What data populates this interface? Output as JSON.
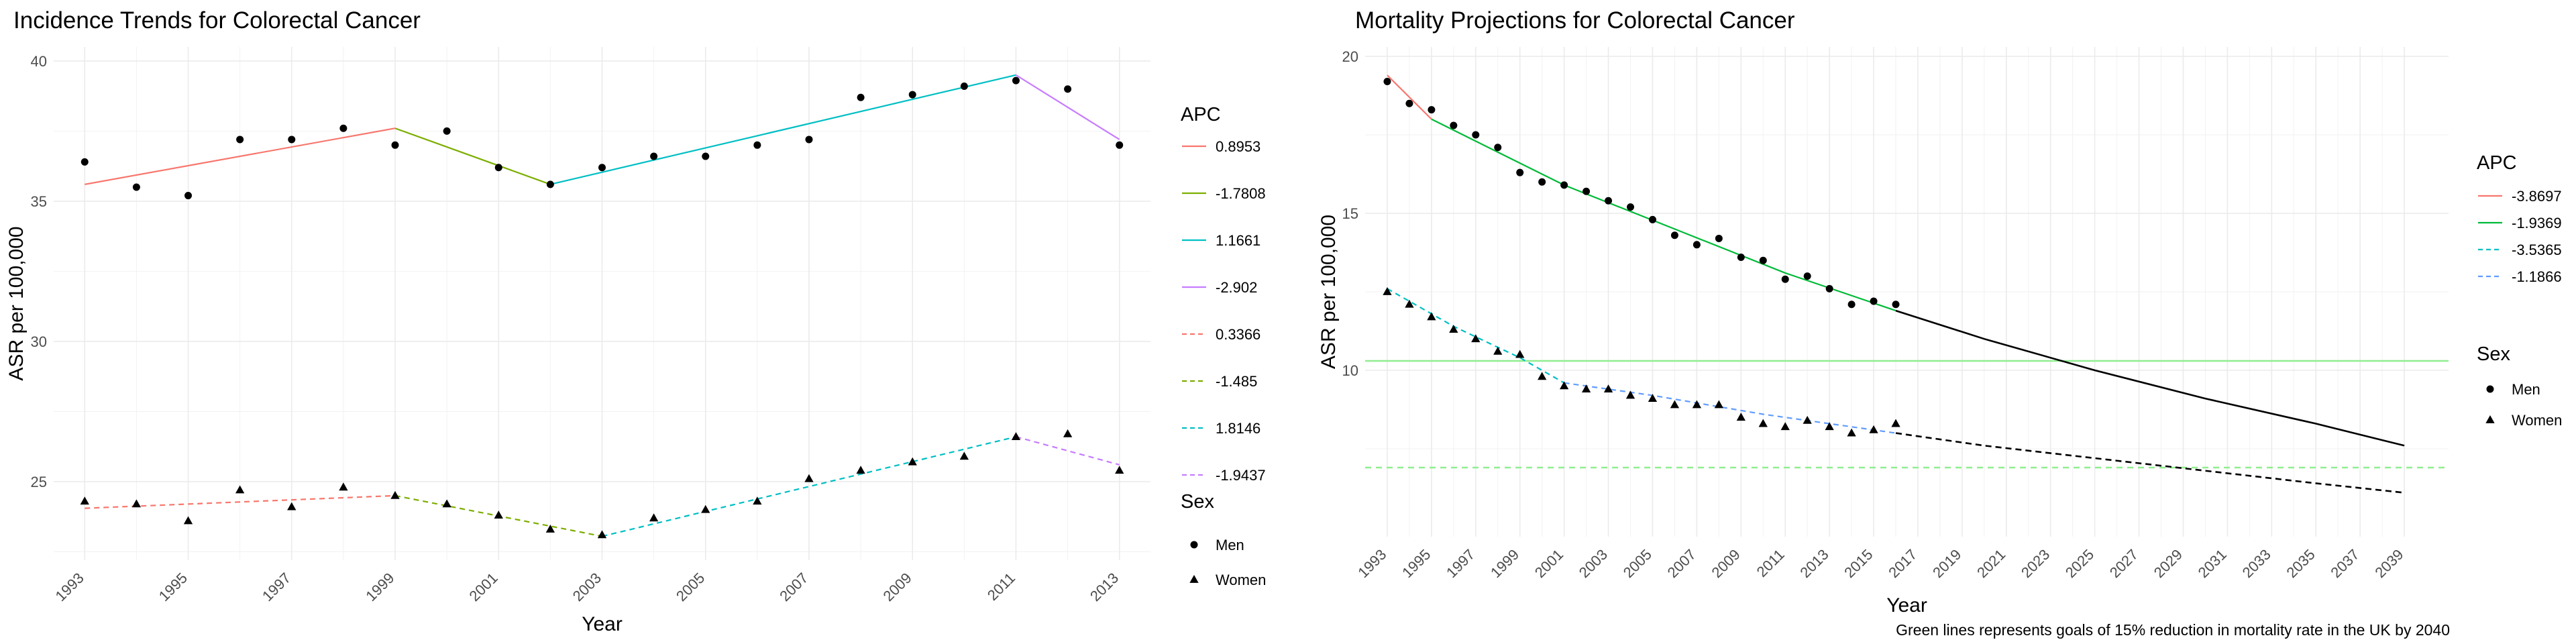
{
  "chart_data": [
    {
      "type": "scatter",
      "title": "Incidence Trends for Colorectal Cancer",
      "xlabel": "Year",
      "ylabel": "ASR per 100,000",
      "xlim": [
        1992.4,
        2013.6
      ],
      "ylim": [
        22.2,
        40.5
      ],
      "x_ticks": [
        "1993",
        "1995",
        "1997",
        "1999",
        "2001",
        "2003",
        "2005",
        "2007",
        "2009",
        "2011",
        "2013"
      ],
      "y_ticks": [
        "25",
        "30",
        "35",
        "40"
      ],
      "grid": true,
      "legend": {
        "placement": "right",
        "apc_title": "APC",
        "sex_title": "Sex",
        "apc_entries": [
          {
            "label": "0.8953",
            "color": "#F8766D",
            "dashed": false
          },
          {
            "label": "-1.7808",
            "color": "#7CAE00",
            "dashed": false
          },
          {
            "label": "1.1661",
            "color": "#00BFC4",
            "dashed": false
          },
          {
            "label": "-2.902",
            "color": "#C77CFF",
            "dashed": false
          },
          {
            "label": "0.3366",
            "color": "#F8766D",
            "dashed": true
          },
          {
            "label": "-1.485",
            "color": "#7CAE00",
            "dashed": true
          },
          {
            "label": "1.8146",
            "color": "#00BFC4",
            "dashed": true
          },
          {
            "label": "-1.9437",
            "color": "#C77CFF",
            "dashed": true
          }
        ],
        "sex_entries": [
          {
            "label": "Men",
            "shape": "circle"
          },
          {
            "label": "Women",
            "shape": "triangle"
          }
        ]
      },
      "series": [
        {
          "name": "Men",
          "shape": "circle",
          "x": [
            1993,
            1994,
            1995,
            1996,
            1997,
            1998,
            1999,
            2000,
            2001,
            2002,
            2003,
            2004,
            2005,
            2006,
            2007,
            2008,
            2009,
            2010,
            2011,
            2012,
            2013
          ],
          "y": [
            36.4,
            35.5,
            35.2,
            37.2,
            37.2,
            37.6,
            37.0,
            37.5,
            36.2,
            35.6,
            36.2,
            36.6,
            36.6,
            37.0,
            37.2,
            38.7,
            38.8,
            39.1,
            39.3,
            39.0,
            37.0
          ]
        },
        {
          "name": "Women",
          "shape": "triangle",
          "x": [
            1993,
            1994,
            1995,
            1996,
            1997,
            1998,
            1999,
            2000,
            2001,
            2002,
            2003,
            2004,
            2005,
            2006,
            2007,
            2008,
            2009,
            2010,
            2011,
            2012,
            2013
          ],
          "y": [
            24.3,
            24.2,
            23.6,
            24.7,
            24.1,
            24.8,
            24.5,
            24.2,
            23.8,
            23.3,
            23.1,
            23.7,
            24.0,
            24.3,
            25.1,
            25.4,
            25.7,
            25.9,
            26.6,
            26.7,
            25.4
          ]
        }
      ],
      "trend_segments": [
        {
          "apc": "0.8953",
          "color": "#F8766D",
          "dashed": false,
          "x": [
            1993,
            1999
          ],
          "y": [
            35.6,
            37.6
          ]
        },
        {
          "apc": "-1.7808",
          "color": "#7CAE00",
          "dashed": false,
          "x": [
            1999,
            2002
          ],
          "y": [
            37.6,
            35.6
          ]
        },
        {
          "apc": "1.1661",
          "color": "#00BFC4",
          "dashed": false,
          "x": [
            2002,
            2011
          ],
          "y": [
            35.6,
            39.5
          ]
        },
        {
          "apc": "-2.902",
          "color": "#C77CFF",
          "dashed": false,
          "x": [
            2011,
            2013
          ],
          "y": [
            39.5,
            37.2
          ]
        },
        {
          "apc": "0.3366",
          "color": "#F8766D",
          "dashed": true,
          "x": [
            1993,
            1999
          ],
          "y": [
            24.05,
            24.5
          ]
        },
        {
          "apc": "-1.485",
          "color": "#7CAE00",
          "dashed": true,
          "x": [
            1999,
            2003
          ],
          "y": [
            24.5,
            23.05
          ]
        },
        {
          "apc": "1.8146",
          "color": "#00BFC4",
          "dashed": true,
          "x": [
            2003,
            2011
          ],
          "y": [
            23.05,
            26.6
          ]
        },
        {
          "apc": "-1.9437",
          "color": "#C77CFF",
          "dashed": true,
          "x": [
            2011,
            2013
          ],
          "y": [
            26.6,
            25.6
          ]
        }
      ]
    },
    {
      "type": "scatter",
      "title": "Mortality Projections for Colorectal Cancer",
      "xlabel": "Year",
      "ylabel": "ASR per 100,000",
      "xlim": [
        1992.0,
        2041.0
      ],
      "ylim": [
        4.7,
        20.3
      ],
      "x_ticks": [
        "1993",
        "1995",
        "1997",
        "1999",
        "2001",
        "2003",
        "2005",
        "2007",
        "2009",
        "2011",
        "2013",
        "2015",
        "2017",
        "2019",
        "2021",
        "2023",
        "2025",
        "2027",
        "2029",
        "2031",
        "2033",
        "2035",
        "2037",
        "2039"
      ],
      "y_ticks": [
        "10",
        "15",
        "20"
      ],
      "grid": true,
      "caption": "Green lines represents goals of 15% reduction in mortality rate in the UK by 2040",
      "legend": {
        "placement": "right",
        "apc_title": "APC",
        "sex_title": "Sex",
        "apc_entries": [
          {
            "label": "-3.8697",
            "color": "#F8766D",
            "dashed": false
          },
          {
            "label": "-1.9369",
            "color": "#00BA38",
            "dashed": false
          },
          {
            "label": "-3.5365",
            "color": "#00BFC4",
            "dashed": true
          },
          {
            "label": "-1.1866",
            "color": "#619CFF",
            "dashed": true
          }
        ],
        "sex_entries": [
          {
            "label": "Men",
            "shape": "circle"
          },
          {
            "label": "Women",
            "shape": "triangle"
          }
        ]
      },
      "goal_lines": [
        {
          "y": 10.3,
          "color": "#90EE90",
          "dashed": false
        },
        {
          "y": 6.9,
          "color": "#90EE90",
          "dashed": true
        }
      ],
      "series": [
        {
          "name": "Men",
          "shape": "circle",
          "x": [
            1993,
            1994,
            1995,
            1996,
            1997,
            1998,
            1999,
            2000,
            2001,
            2002,
            2003,
            2004,
            2005,
            2006,
            2007,
            2008,
            2009,
            2010,
            2011,
            2012,
            2013,
            2014,
            2015,
            2016
          ],
          "y": [
            19.2,
            18.5,
            18.3,
            17.8,
            17.5,
            17.1,
            16.3,
            16.0,
            15.9,
            15.7,
            15.4,
            15.2,
            14.8,
            14.3,
            14.0,
            14.2,
            13.6,
            13.5,
            12.9,
            13.0,
            12.6,
            12.1,
            12.2,
            12.1
          ]
        },
        {
          "name": "Women",
          "shape": "triangle",
          "x": [
            1993,
            1994,
            1995,
            1996,
            1997,
            1998,
            1999,
            2000,
            2001,
            2002,
            2003,
            2004,
            2005,
            2006,
            2007,
            2008,
            2009,
            2010,
            2011,
            2012,
            2013,
            2014,
            2015,
            2016
          ],
          "y": [
            12.5,
            12.1,
            11.7,
            11.3,
            11.0,
            10.6,
            10.5,
            9.8,
            9.5,
            9.4,
            9.4,
            9.2,
            9.1,
            8.9,
            8.9,
            8.9,
            8.5,
            8.3,
            8.2,
            8.4,
            8.2,
            8.0,
            8.1,
            8.3
          ]
        }
      ],
      "trend_segments": [
        {
          "apc": "-3.8697",
          "color": "#F8766D",
          "dashed": false,
          "x": [
            1993,
            1995
          ],
          "y": [
            19.4,
            18.0
          ]
        },
        {
          "apc": "-1.9369",
          "color": "#00BA38",
          "dashed": false,
          "x": [
            1995,
            2001,
            2006,
            2011,
            2016
          ],
          "y": [
            18.0,
            15.9,
            14.5,
            13.1,
            11.9
          ]
        },
        {
          "apc": "-3.5365",
          "color": "#00BFC4",
          "dashed": true,
          "x": [
            1993,
            1996,
            1999,
            2001
          ],
          "y": [
            12.6,
            11.4,
            10.4,
            9.6
          ]
        },
        {
          "apc": "-1.1866",
          "color": "#619CFF",
          "dashed": true,
          "x": [
            2001,
            2005,
            2010,
            2016
          ],
          "y": [
            9.6,
            9.2,
            8.6,
            8.0
          ]
        }
      ],
      "projections": [
        {
          "color": "#000000",
          "dashed": false,
          "x": [
            2016,
            2020,
            2025,
            2030,
            2035,
            2039
          ],
          "y": [
            11.9,
            11.0,
            10.0,
            9.1,
            8.3,
            7.6
          ]
        },
        {
          "color": "#000000",
          "dashed": true,
          "x": [
            2016,
            2020,
            2025,
            2030,
            2035,
            2039
          ],
          "y": [
            8.0,
            7.6,
            7.2,
            6.8,
            6.4,
            6.1
          ]
        }
      ]
    }
  ]
}
